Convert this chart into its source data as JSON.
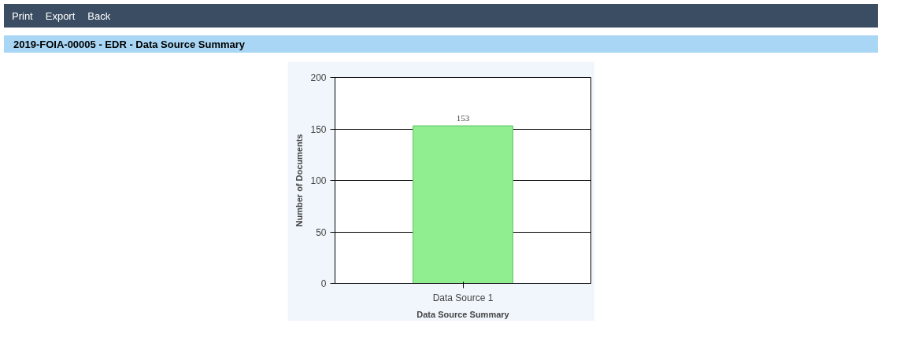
{
  "chart_data": {
    "type": "bar",
    "title": "2019-FOIA-00005 - EDR - Data Source Summary",
    "xlabel": "Data Source Summary",
    "ylabel": "Number of Documents",
    "categories": [
      "Data Source 1"
    ],
    "values": [
      153
    ],
    "color": "#90ee90",
    "data_labels": true,
    "ylim": [
      0,
      200
    ],
    "yticks": [
      0,
      50,
      100,
      150,
      200
    ],
    "grid": "y",
    "annotations": [
      "Print",
      "Export",
      "Back"
    ]
  }
}
